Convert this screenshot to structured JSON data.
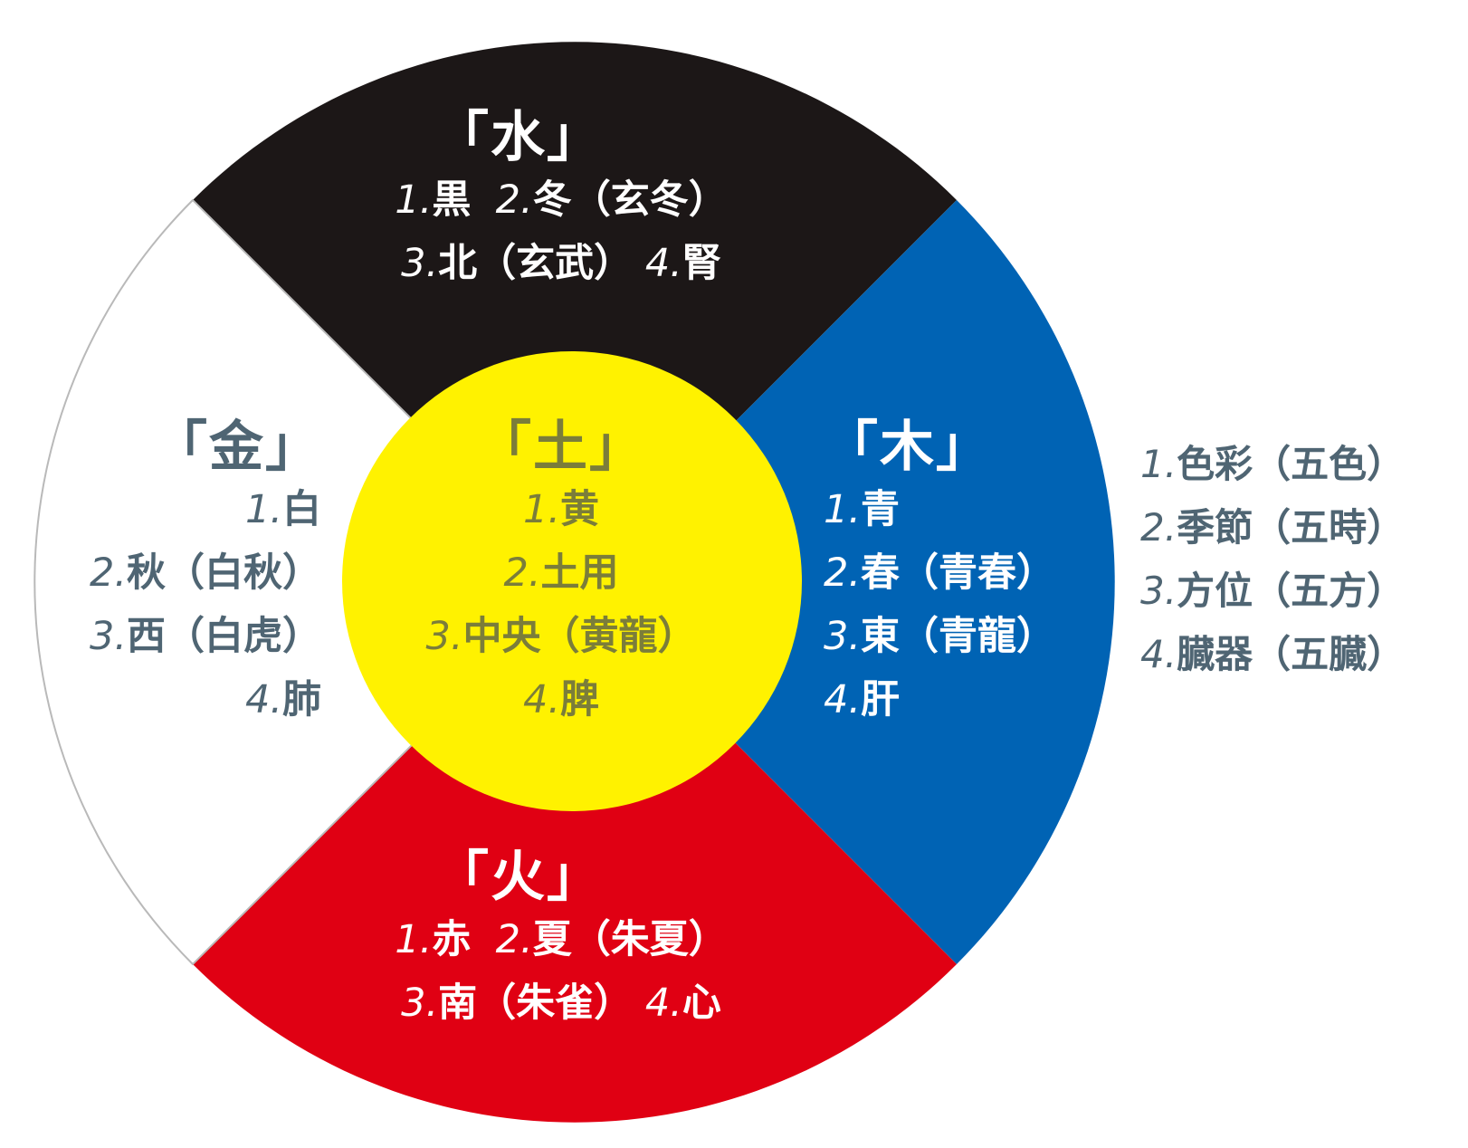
{
  "colors": {
    "water": "#1c1717",
    "wood": "#0063b4",
    "fire": "#e00013",
    "metal": "#ffffff",
    "earth": "#fff200",
    "muted_text": "#4f6573",
    "earth_text": "#7b7d3a",
    "outline": "#b9b9b9"
  },
  "elements": {
    "water": {
      "title": "「水」",
      "lines": [
        [
          {
            "n": "1.",
            "t": "黒"
          },
          {
            "n": "  2.",
            "t": "冬（玄冬）"
          }
        ],
        [
          {
            "n": "3.",
            "t": "北（玄武）"
          },
          {
            "n": " 4.",
            "t": "腎"
          }
        ]
      ]
    },
    "metal": {
      "title": "「金」",
      "lines": [
        [
          {
            "n": "1.",
            "t": "白"
          }
        ],
        [
          {
            "n": "2.",
            "t": "秋（白秋）"
          }
        ],
        [
          {
            "n": "3.",
            "t": "西（白虎）"
          }
        ],
        [
          {
            "n": "4.",
            "t": "肺"
          }
        ]
      ]
    },
    "earth": {
      "title": "「土」",
      "lines": [
        [
          {
            "n": "1.",
            "t": "黄"
          }
        ],
        [
          {
            "n": "2.",
            "t": "土用"
          }
        ],
        [
          {
            "n": "3.",
            "t": "中央（黄龍）"
          }
        ],
        [
          {
            "n": "4.",
            "t": "脾"
          }
        ]
      ]
    },
    "wood": {
      "title": "「木」",
      "lines": [
        [
          {
            "n": "1.",
            "t": "青"
          }
        ],
        [
          {
            "n": "2.",
            "t": "春（青春）"
          }
        ],
        [
          {
            "n": "3.",
            "t": "東（青龍）"
          }
        ],
        [
          {
            "n": "4.",
            "t": "肝"
          }
        ]
      ]
    },
    "fire": {
      "title": "「火」",
      "lines": [
        [
          {
            "n": "1.",
            "t": "赤"
          },
          {
            "n": "  2.",
            "t": "夏（朱夏）"
          }
        ],
        [
          {
            "n": "3.",
            "t": "南（朱雀）"
          },
          {
            "n": " 4.",
            "t": "心"
          }
        ]
      ]
    }
  },
  "legend": [
    {
      "n": "1.",
      "t": "色彩（五色）"
    },
    {
      "n": "2.",
      "t": "季節（五時）"
    },
    {
      "n": "3.",
      "t": "方位（五方）"
    },
    {
      "n": "4.",
      "t": "臓器（五臓）"
    }
  ]
}
